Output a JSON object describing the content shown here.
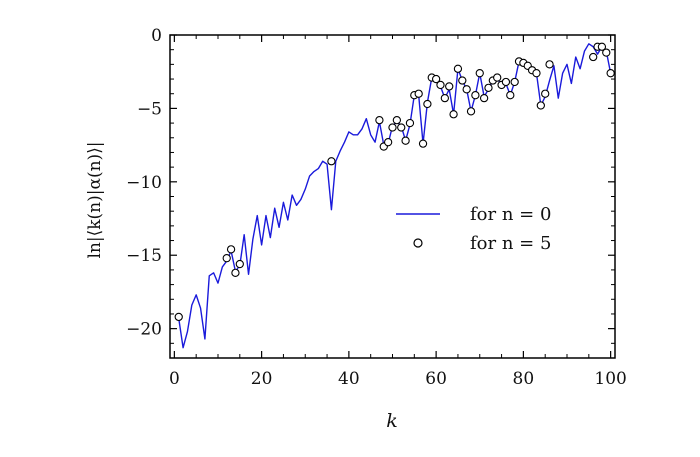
{
  "chart_data": {
    "type": "line",
    "xlabel": "k",
    "ylabel": "ln|⟨k(n)|α(n)⟩|",
    "xlim": [
      -1,
      101
    ],
    "ylim": [
      -22,
      0
    ],
    "x_ticks": [
      0,
      20,
      40,
      60,
      80,
      100
    ],
    "y_ticks": [
      0,
      -5,
      -10,
      -15,
      -20
    ],
    "x_tick_labels": [
      "0",
      "20",
      "40",
      "60",
      "80",
      "100"
    ],
    "y_tick_labels": [
      "0",
      "−5",
      "−10",
      "−15",
      "−20"
    ],
    "legend_position": "center-right",
    "series": [
      {
        "name": "for n = 0",
        "style": "line",
        "color": "#1a1adb",
        "x": [
          1,
          2,
          3,
          4,
          5,
          6,
          7,
          8,
          9,
          10,
          11,
          12,
          13,
          14,
          15,
          16,
          17,
          18,
          19,
          20,
          21,
          22,
          23,
          24,
          25,
          26,
          27,
          28,
          29,
          30,
          31,
          32,
          33,
          34,
          35,
          36,
          37,
          38,
          39,
          40,
          41,
          42,
          43,
          44,
          45,
          46,
          47,
          48,
          49,
          50,
          51,
          52,
          53,
          54,
          55,
          56,
          57,
          58,
          59,
          60,
          61,
          62,
          63,
          64,
          65,
          66,
          67,
          68,
          69,
          70,
          71,
          72,
          73,
          74,
          75,
          76,
          77,
          78,
          79,
          80,
          81,
          82,
          83,
          84,
          85,
          86,
          87,
          88,
          89,
          90,
          91,
          92,
          93,
          94,
          95,
          96,
          97,
          98,
          99,
          100
        ],
        "y": [
          -19.3,
          -21.3,
          -20.2,
          -18.4,
          -17.7,
          -18.6,
          -20.7,
          -16.4,
          -16.2,
          -16.9,
          -15.8,
          -15.4,
          -14.7,
          -16.1,
          -15.7,
          -13.6,
          -16.3,
          -13.9,
          -12.3,
          -14.3,
          -12.3,
          -13.8,
          -11.8,
          -13.1,
          -11.4,
          -12.6,
          -10.9,
          -11.6,
          -11.2,
          -10.5,
          -9.6,
          -9.3,
          -9.1,
          -8.6,
          -8.8,
          -11.9,
          -8.6,
          -7.9,
          -7.3,
          -6.6,
          -6.8,
          -6.8,
          -6.4,
          -5.7,
          -6.8,
          -7.3,
          -5.9,
          -7.5,
          -7.4,
          -6.2,
          -5.9,
          -6.2,
          -7.2,
          -6.1,
          -4.1,
          -4.1,
          -7.4,
          -4.6,
          -2.9,
          -3.0,
          -3.5,
          -4.3,
          -3.7,
          -5.4,
          -2.3,
          -3.1,
          -3.7,
          -5.2,
          -4.1,
          -2.6,
          -4.2,
          -3.7,
          -3.1,
          -2.9,
          -3.5,
          -3.3,
          -4.1,
          -3.2,
          -1.8,
          -1.9,
          -2.1,
          -2.3,
          -2.6,
          -4.8,
          -4.2,
          -3.1,
          -2.1,
          -4.3,
          -2.6,
          -2.0,
          -3.3,
          -1.5,
          -2.3,
          -1.1,
          -0.6,
          -0.8,
          -1.3,
          -0.8,
          -1.1,
          -2.6
        ]
      },
      {
        "name": "for n = 5",
        "style": "markers",
        "color": "#000000",
        "x": [
          1,
          12,
          13,
          14,
          15,
          36,
          47,
          48,
          49,
          50,
          51,
          52,
          53,
          54,
          55,
          56,
          57,
          58,
          59,
          60,
          61,
          62,
          63,
          64,
          65,
          66,
          67,
          68,
          69,
          70,
          71,
          72,
          73,
          74,
          75,
          76,
          77,
          78,
          79,
          80,
          81,
          82,
          83,
          84,
          85,
          86,
          96,
          97,
          98,
          99,
          100
        ],
        "y": [
          -19.2,
          -15.2,
          -14.6,
          -16.2,
          -15.6,
          -8.6,
          -5.8,
          -7.6,
          -7.3,
          -6.3,
          -5.8,
          -6.3,
          -7.2,
          -6.0,
          -4.1,
          -4.0,
          -7.4,
          -4.7,
          -2.9,
          -3.0,
          -3.4,
          -4.3,
          -3.5,
          -5.4,
          -2.3,
          -3.1,
          -3.7,
          -5.2,
          -4.1,
          -2.6,
          -4.3,
          -3.6,
          -3.1,
          -2.9,
          -3.4,
          -3.2,
          -4.1,
          -3.2,
          -1.8,
          -1.9,
          -2.1,
          -2.4,
          -2.6,
          -4.8,
          -4.0,
          -2.0,
          -1.5,
          -0.8,
          -0.8,
          -1.2,
          -2.6
        ]
      }
    ]
  }
}
